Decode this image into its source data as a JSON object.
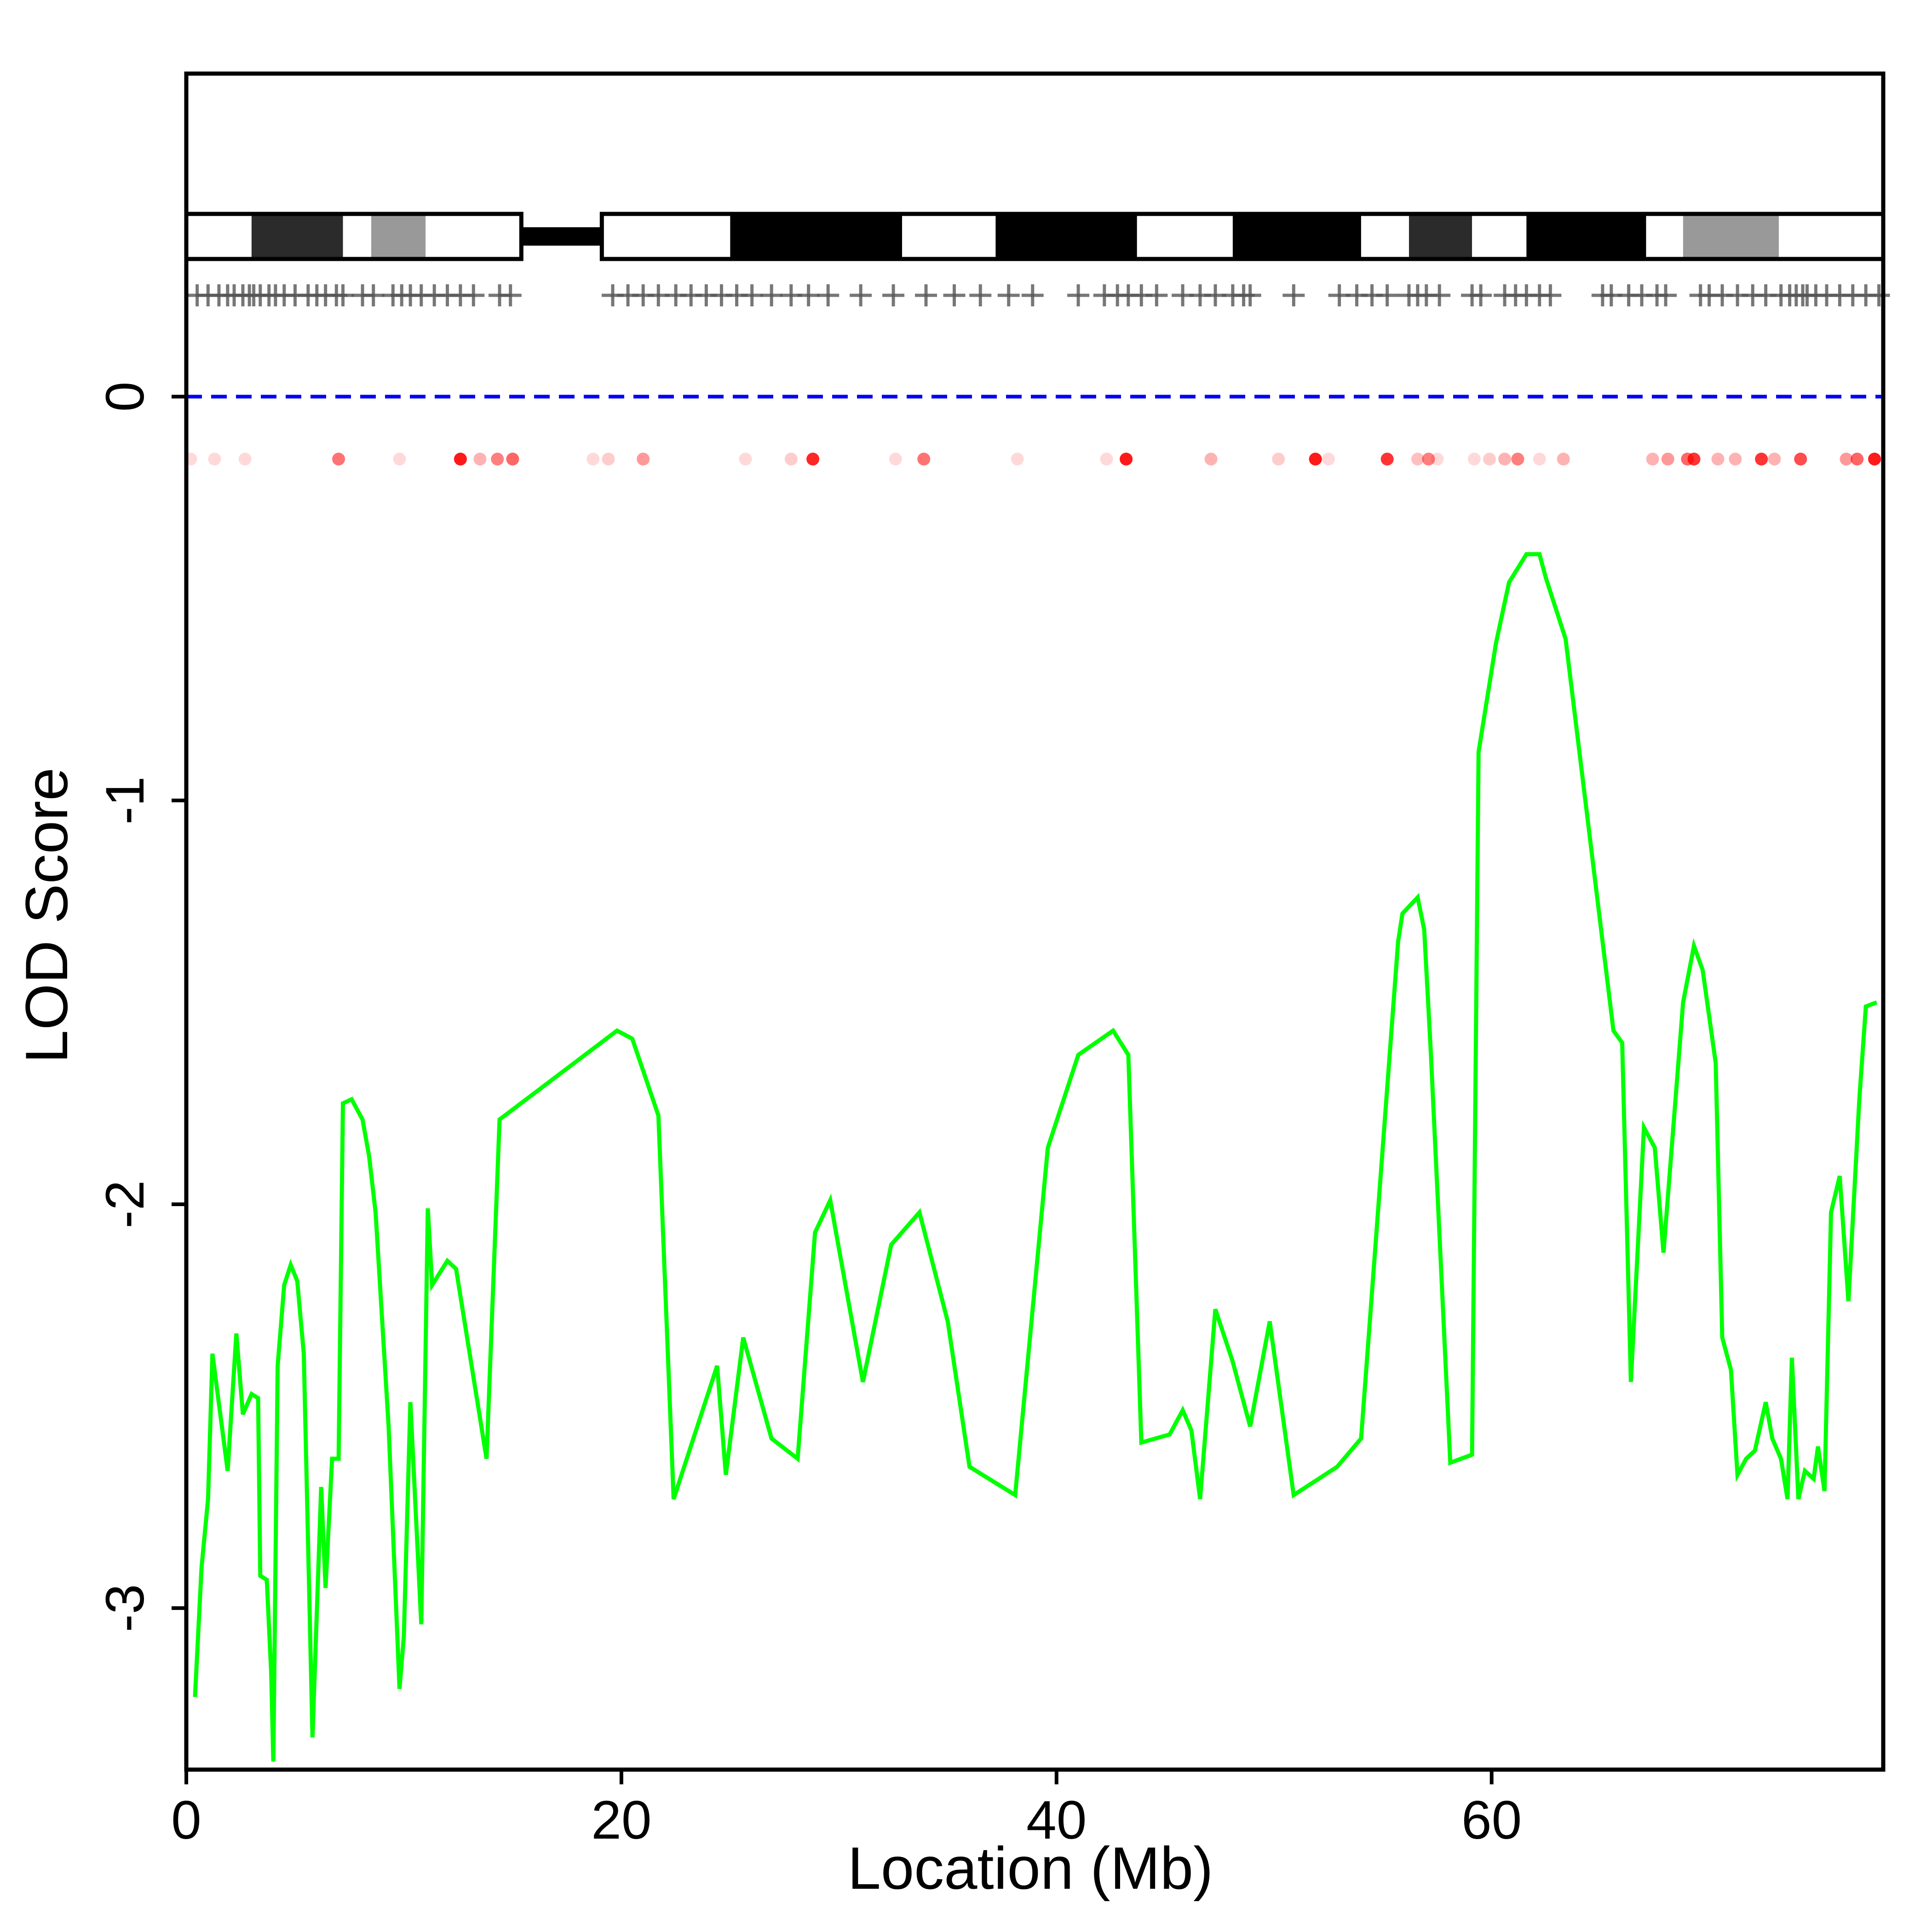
{
  "chart_data": {
    "type": "line",
    "xlabel": "Location (Mb)",
    "ylabel": "LOD Score",
    "xlim": [
      0,
      78
    ],
    "ylim": [
      -3.4,
      0.8
    ],
    "xticks": [
      0,
      20,
      40,
      60
    ],
    "yticks": [
      0,
      -1,
      -2,
      -3
    ],
    "threshold": 0,
    "colors": {
      "lod_line": "#00ff00",
      "threshold_line": "#0000ff",
      "marker_dots": "#ff0000",
      "marker_ticks": "#555555",
      "gap_fill": "#000000"
    },
    "ideogram": {
      "gap": [
        15.4,
        19.1
      ],
      "bands": [
        {
          "start": 0.0,
          "end": 3.0,
          "fill": "#ffffff"
        },
        {
          "start": 3.0,
          "end": 7.2,
          "fill": "#2b2b2b"
        },
        {
          "start": 7.2,
          "end": 8.5,
          "fill": "#ffffff"
        },
        {
          "start": 8.5,
          "end": 11.0,
          "fill": "#999999"
        },
        {
          "start": 11.0,
          "end": 15.4,
          "fill": "#ffffff"
        },
        {
          "start": 19.1,
          "end": 25.0,
          "fill": "#ffffff"
        },
        {
          "start": 25.0,
          "end": 32.9,
          "fill": "#000000"
        },
        {
          "start": 32.9,
          "end": 37.2,
          "fill": "#ffffff"
        },
        {
          "start": 37.2,
          "end": 43.7,
          "fill": "#000000"
        },
        {
          "start": 43.7,
          "end": 48.1,
          "fill": "#ffffff"
        },
        {
          "start": 48.1,
          "end": 54.0,
          "fill": "#000000"
        },
        {
          "start": 54.0,
          "end": 56.2,
          "fill": "#ffffff"
        },
        {
          "start": 56.2,
          "end": 59.1,
          "fill": "#2b2b2b"
        },
        {
          "start": 59.1,
          "end": 61.6,
          "fill": "#ffffff"
        },
        {
          "start": 61.6,
          "end": 67.1,
          "fill": "#000000"
        },
        {
          "start": 67.1,
          "end": 68.8,
          "fill": "#ffffff"
        },
        {
          "start": 68.8,
          "end": 73.2,
          "fill": "#999999"
        },
        {
          "start": 73.2,
          "end": 78.0,
          "fill": "#ffffff"
        }
      ]
    },
    "markers": [
      0.5,
      1.0,
      1.5,
      1.9,
      2.2,
      2.6,
      2.9,
      3.1,
      3.4,
      3.8,
      4.1,
      4.5,
      5.0,
      5.6,
      6.0,
      6.4,
      6.9,
      7.2,
      8.1,
      8.6,
      9.5,
      9.9,
      10.3,
      10.8,
      11.4,
      12.0,
      12.6,
      13.2,
      14.4,
      14.9,
      19.6,
      20.3,
      21.0,
      21.7,
      22.5,
      23.2,
      23.9,
      24.6,
      25.3,
      26.0,
      26.9,
      27.8,
      28.6,
      29.5,
      31.0,
      32.5,
      34.0,
      35.3,
      36.5,
      37.8,
      38.9,
      41.0,
      42.2,
      42.8,
      43.3,
      43.9,
      44.6,
      45.8,
      46.6,
      47.3,
      48.1,
      48.6,
      48.9,
      50.9,
      53.0,
      53.8,
      54.5,
      55.2,
      56.2,
      56.6,
      57.0,
      57.6,
      59.1,
      59.5,
      60.6,
      61.1,
      61.6,
      62.2,
      62.7,
      65.1,
      65.5,
      66.3,
      66.9,
      67.6,
      68.0,
      69.6,
      70.0,
      70.6,
      71.3,
      72.0,
      72.6,
      73.3,
      73.7,
      74.0,
      74.3,
      74.5,
      74.9,
      75.4,
      76.0,
      76.6,
      77.2,
      77.8
    ],
    "marker_dots": [
      {
        "x": 0.2,
        "a": 0.15
      },
      {
        "x": 1.3,
        "a": 0.15
      },
      {
        "x": 2.7,
        "a": 0.15
      },
      {
        "x": 7.0,
        "a": 0.55
      },
      {
        "x": 9.8,
        "a": 0.15
      },
      {
        "x": 12.6,
        "a": 0.9
      },
      {
        "x": 13.5,
        "a": 0.3
      },
      {
        "x": 14.3,
        "a": 0.5
      },
      {
        "x": 15.0,
        "a": 0.6
      },
      {
        "x": 18.7,
        "a": 0.15
      },
      {
        "x": 19.4,
        "a": 0.2
      },
      {
        "x": 21.0,
        "a": 0.4
      },
      {
        "x": 25.7,
        "a": 0.15
      },
      {
        "x": 27.8,
        "a": 0.2
      },
      {
        "x": 28.8,
        "a": 0.85
      },
      {
        "x": 32.6,
        "a": 0.15
      },
      {
        "x": 33.9,
        "a": 0.55
      },
      {
        "x": 38.2,
        "a": 0.15
      },
      {
        "x": 42.3,
        "a": 0.15
      },
      {
        "x": 43.2,
        "a": 0.9
      },
      {
        "x": 47.1,
        "a": 0.3
      },
      {
        "x": 50.2,
        "a": 0.2
      },
      {
        "x": 51.9,
        "a": 0.9
      },
      {
        "x": 52.5,
        "a": 0.15
      },
      {
        "x": 55.2,
        "a": 0.8
      },
      {
        "x": 56.6,
        "a": 0.25
      },
      {
        "x": 57.1,
        "a": 0.5
      },
      {
        "x": 57.5,
        "a": 0.15
      },
      {
        "x": 59.2,
        "a": 0.15
      },
      {
        "x": 59.9,
        "a": 0.2
      },
      {
        "x": 60.6,
        "a": 0.3
      },
      {
        "x": 61.2,
        "a": 0.5
      },
      {
        "x": 62.2,
        "a": 0.15
      },
      {
        "x": 63.3,
        "a": 0.3
      },
      {
        "x": 67.4,
        "a": 0.3
      },
      {
        "x": 68.1,
        "a": 0.4
      },
      {
        "x": 69.0,
        "a": 0.6
      },
      {
        "x": 69.3,
        "a": 0.8
      },
      {
        "x": 70.4,
        "a": 0.3
      },
      {
        "x": 71.2,
        "a": 0.3
      },
      {
        "x": 72.4,
        "a": 0.8
      },
      {
        "x": 73.0,
        "a": 0.3
      },
      {
        "x": 74.2,
        "a": 0.7
      },
      {
        "x": 76.3,
        "a": 0.4
      },
      {
        "x": 76.8,
        "a": 0.6
      },
      {
        "x": 77.6,
        "a": 0.9
      }
    ],
    "series": [
      {
        "x": [
          0.4,
          0.7,
          1.0,
          1.2,
          1.9,
          2.3,
          2.6,
          3.0,
          3.3,
          3.4,
          3.7,
          3.9,
          4.0,
          4.2,
          4.5,
          4.8,
          5.1,
          5.4,
          5.8,
          6.2,
          6.4,
          6.7,
          7.0,
          7.2,
          7.6,
          8.1,
          8.4,
          8.7,
          9.3,
          9.8,
          10.0,
          10.3,
          10.8,
          11.1,
          11.3,
          12.0,
          12.4,
          13.8,
          14.4,
          19.8,
          20.5,
          21.7,
          22.4,
          24.4,
          24.8,
          25.6,
          26.9,
          28.1,
          28.9,
          29.6,
          31.1,
          32.4,
          33.7,
          35.0,
          36.0,
          38.1,
          39.6,
          41.0,
          42.6,
          43.3,
          43.9,
          45.2,
          45.8,
          46.2,
          46.6,
          47.3,
          48.1,
          48.9,
          49.8,
          50.9,
          52.9,
          54.0,
          55.7,
          55.9,
          56.6,
          56.9,
          57.2,
          58.1,
          59.1,
          59.4,
          60.2,
          60.8,
          61.6,
          62.2,
          62.5,
          63.4,
          65.6,
          66.0,
          66.4,
          67.0,
          67.5,
          67.9,
          68.8,
          69.3,
          69.7,
          70.3,
          70.6,
          71.0,
          71.3,
          71.7,
          72.1,
          72.6,
          72.9,
          73.3,
          73.6,
          73.8,
          74.1,
          74.4,
          74.8,
          75.0,
          75.3,
          75.6,
          76.0,
          76.4,
          76.9,
          77.2,
          77.7
        ]
      },
      {
        "y": [
          -3.22,
          -2.9,
          -2.73,
          -2.37,
          -2.66,
          -2.32,
          -2.52,
          -2.47,
          -2.48,
          -2.92,
          -2.93,
          -3.16,
          -3.38,
          -2.4,
          -2.2,
          -2.15,
          -2.19,
          -2.37,
          -3.32,
          -2.7,
          -2.95,
          -2.63,
          -2.63,
          -1.75,
          -1.74,
          -1.79,
          -1.88,
          -2.02,
          -2.55,
          -3.2,
          -3.07,
          -2.49,
          -3.04,
          -2.01,
          -2.2,
          -2.14,
          -2.16,
          -2.63,
          -1.79,
          -1.57,
          -1.59,
          -1.78,
          -2.73,
          -2.4,
          -2.67,
          -2.33,
          -2.58,
          -2.63,
          -2.07,
          -1.99,
          -2.44,
          -2.1,
          -2.02,
          -2.29,
          -2.65,
          -2.72,
          -1.86,
          -1.63,
          -1.57,
          -1.63,
          -2.59,
          -2.57,
          -2.51,
          -2.56,
          -2.73,
          -2.26,
          -2.39,
          -2.55,
          -2.29,
          -2.72,
          -2.65,
          -2.58,
          -1.35,
          -1.28,
          -1.24,
          -1.32,
          -1.62,
          -2.64,
          -2.62,
          -0.88,
          -0.61,
          -0.46,
          -0.39,
          -0.39,
          -0.45,
          -0.6,
          -1.57,
          -1.6,
          -2.44,
          -1.81,
          -1.86,
          -2.12,
          -1.5,
          -1.36,
          -1.42,
          -1.65,
          -2.33,
          -2.41,
          -2.67,
          -2.63,
          -2.61,
          -2.49,
          -2.58,
          -2.63,
          -2.73,
          -2.38,
          -2.73,
          -2.66,
          -2.68,
          -2.6,
          -2.71,
          -2.02,
          -1.93,
          -2.24,
          -1.74,
          -1.51,
          -1.5
        ]
      }
    ]
  }
}
